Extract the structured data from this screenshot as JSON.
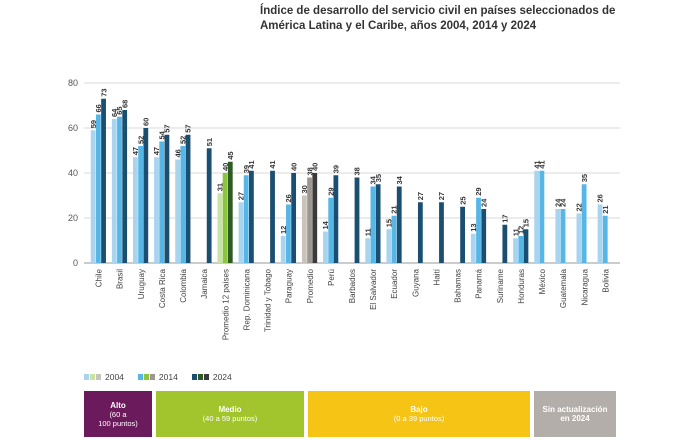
{
  "title_lines": [
    "Índice de desarrollo del servicio civil en países seleccionados de",
    "América Latina y el Caribe, años 2004, 2014 y 2024"
  ],
  "legend": [
    {
      "label": "2004",
      "colors": [
        "#a8d4f0",
        "#c9e3a5",
        "#c8c3bd"
      ]
    },
    {
      "label": "2014",
      "colors": [
        "#56b6e6",
        "#8cc63f",
        "#9e9790"
      ]
    },
    {
      "label": "2024",
      "colors": [
        "#1b4f72",
        "#2e5b25",
        "#3a3a3a"
      ]
    }
  ],
  "bands": [
    {
      "name": "Alto",
      "range_line1": "(60 a",
      "range_line2": "100 puntos)",
      "color": "#6b1a5c"
    },
    {
      "name": "Medio",
      "range_line1": "(40 a 59 puntos)",
      "range_line2": "",
      "color": "#a2c52d"
    },
    {
      "name": "Bajo",
      "range_line1": "(0 a 39 puntos)",
      "range_line2": "",
      "color": "#f5c414"
    },
    {
      "name": "Sin actualización",
      "range_line1": "en 2024",
      "range_line2": "",
      "color": "#b4aeaa"
    }
  ],
  "chart_data": {
    "type": "bar",
    "title": "Índice de desarrollo del servicio civil en países seleccionados de América Latina y el Caribe, años 2004, 2014 y 2024",
    "xlabel": "",
    "ylabel": "",
    "ylim": [
      0,
      80
    ],
    "yticks": [
      0,
      20,
      40,
      60,
      80
    ],
    "grid": true,
    "series_names": [
      "2004",
      "2014",
      "2024"
    ],
    "palettes": {
      "default": [
        "#a8d4f0",
        "#56b6e6",
        "#1b4f72"
      ],
      "promedio12": [
        "#c9e3a5",
        "#8cc63f",
        "#2e5b25"
      ],
      "promedio": [
        "#c8c3bd",
        "#9e9790",
        "#3a3a3a"
      ]
    },
    "categories": [
      {
        "name": "Chile",
        "values": [
          59,
          66,
          73
        ],
        "palette": "default"
      },
      {
        "name": "Brasil",
        "values": [
          64,
          65,
          68
        ],
        "palette": "default"
      },
      {
        "name": "Uruguay",
        "values": [
          47,
          52,
          60
        ],
        "palette": "default"
      },
      {
        "name": "Costa Rica",
        "values": [
          47,
          54,
          57
        ],
        "palette": "default"
      },
      {
        "name": "Colombia",
        "values": [
          46,
          52,
          57
        ],
        "palette": "default"
      },
      {
        "name": "Jamaica",
        "values": [
          null,
          null,
          51
        ],
        "palette": "default"
      },
      {
        "name": "Promedio 12 países",
        "values": [
          31,
          40,
          45
        ],
        "palette": "promedio12"
      },
      {
        "name": "Rep. Dominicana",
        "values": [
          27,
          39,
          41
        ],
        "palette": "default"
      },
      {
        "name": "Trinidad y Tobago",
        "values": [
          null,
          null,
          41
        ],
        "palette": "default"
      },
      {
        "name": "Paraguay",
        "values": [
          12,
          26,
          40
        ],
        "palette": "default"
      },
      {
        "name": "Promedio",
        "values": [
          30,
          38,
          40
        ],
        "palette": "promedio"
      },
      {
        "name": "Perú",
        "values": [
          14,
          29,
          39
        ],
        "palette": "default"
      },
      {
        "name": "Barbados",
        "values": [
          null,
          null,
          38
        ],
        "palette": "default"
      },
      {
        "name": "El Salvador",
        "values": [
          11,
          34,
          35
        ],
        "palette": "default"
      },
      {
        "name": "Ecuador",
        "values": [
          15,
          21,
          34
        ],
        "palette": "default"
      },
      {
        "name": "Guyana",
        "values": [
          null,
          null,
          27
        ],
        "palette": "default"
      },
      {
        "name": "Haití",
        "values": [
          null,
          null,
          27
        ],
        "palette": "default"
      },
      {
        "name": "Bahamas",
        "values": [
          null,
          null,
          25
        ],
        "palette": "default"
      },
      {
        "name": "Panamá",
        "values": [
          13,
          29,
          24
        ],
        "palette": "default"
      },
      {
        "name": "Suriname",
        "values": [
          null,
          null,
          17
        ],
        "palette": "default"
      },
      {
        "name": "Honduras",
        "values": [
          11,
          12,
          15
        ],
        "palette": "default"
      },
      {
        "name": "México",
        "values": [
          41,
          41,
          null
        ],
        "palette": "default"
      },
      {
        "name": "Guatemala",
        "values": [
          24,
          24,
          null
        ],
        "palette": "default"
      },
      {
        "name": "Nicaragua",
        "values": [
          22,
          35,
          null
        ],
        "palette": "default"
      },
      {
        "name": "Bolivia",
        "values": [
          26,
          21,
          null
        ],
        "palette": "default"
      }
    ]
  }
}
